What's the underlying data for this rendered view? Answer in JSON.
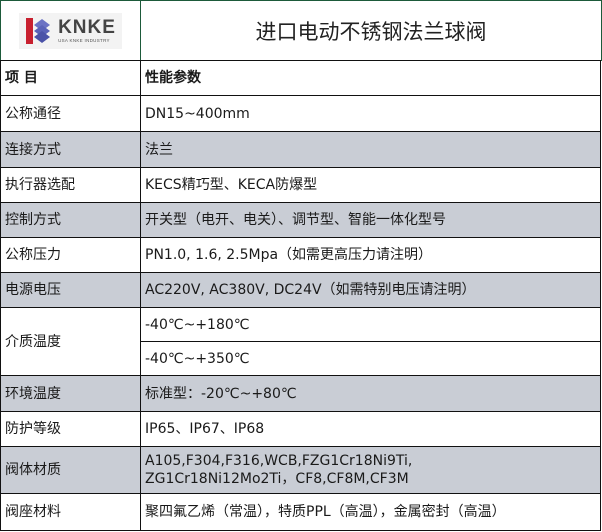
{
  "logo": {
    "brand": "KNKE",
    "tagline": "USA KNKE INDUSTRY",
    "colors": {
      "red": "#c8202f",
      "blue": "#5a62b8"
    }
  },
  "title": "进口电动不锈钢法兰球阀",
  "table": {
    "header": {
      "item": "项 目",
      "spec": "性能参数"
    },
    "rows": [
      {
        "label": "公称通径",
        "value": "DN15~400mm"
      },
      {
        "label": "连接方式",
        "value": "法兰"
      },
      {
        "label": "执行器选配",
        "value": "KECS精巧型、KECA防爆型"
      },
      {
        "label": "控制方式",
        "value": "开关型（电开、电关）、调节型、智能一体化型号"
      },
      {
        "label": "公称压力",
        "value": "PN1.0, 1.6, 2.5Mpa（如需更高压力请注明）"
      },
      {
        "label": "电源电压",
        "value": "AC220V, AC380V, DC24V（如需特别电压请注明）"
      },
      {
        "label": "介质温度",
        "values": [
          "-40℃~+180℃",
          "-40℃~+350℃"
        ]
      },
      {
        "label": "环境温度",
        "value": "标准型：-20℃~+80℃"
      },
      {
        "label": "防护等级",
        "value": "IP65、IP67、IP68"
      },
      {
        "label": "阀体材质",
        "lines": [
          "A105,F304,F316,WCB,FZG1Cr18Ni9Ti,",
          "ZG1Cr18Ni12Mo2Ti，CF8,CF8M,CF3M"
        ]
      },
      {
        "label": "阀座材料",
        "value": "聚四氟乙烯（常温），特质PPL（高温），金属密封（高温）"
      }
    ],
    "stripe_color": "#c9cdd5"
  }
}
